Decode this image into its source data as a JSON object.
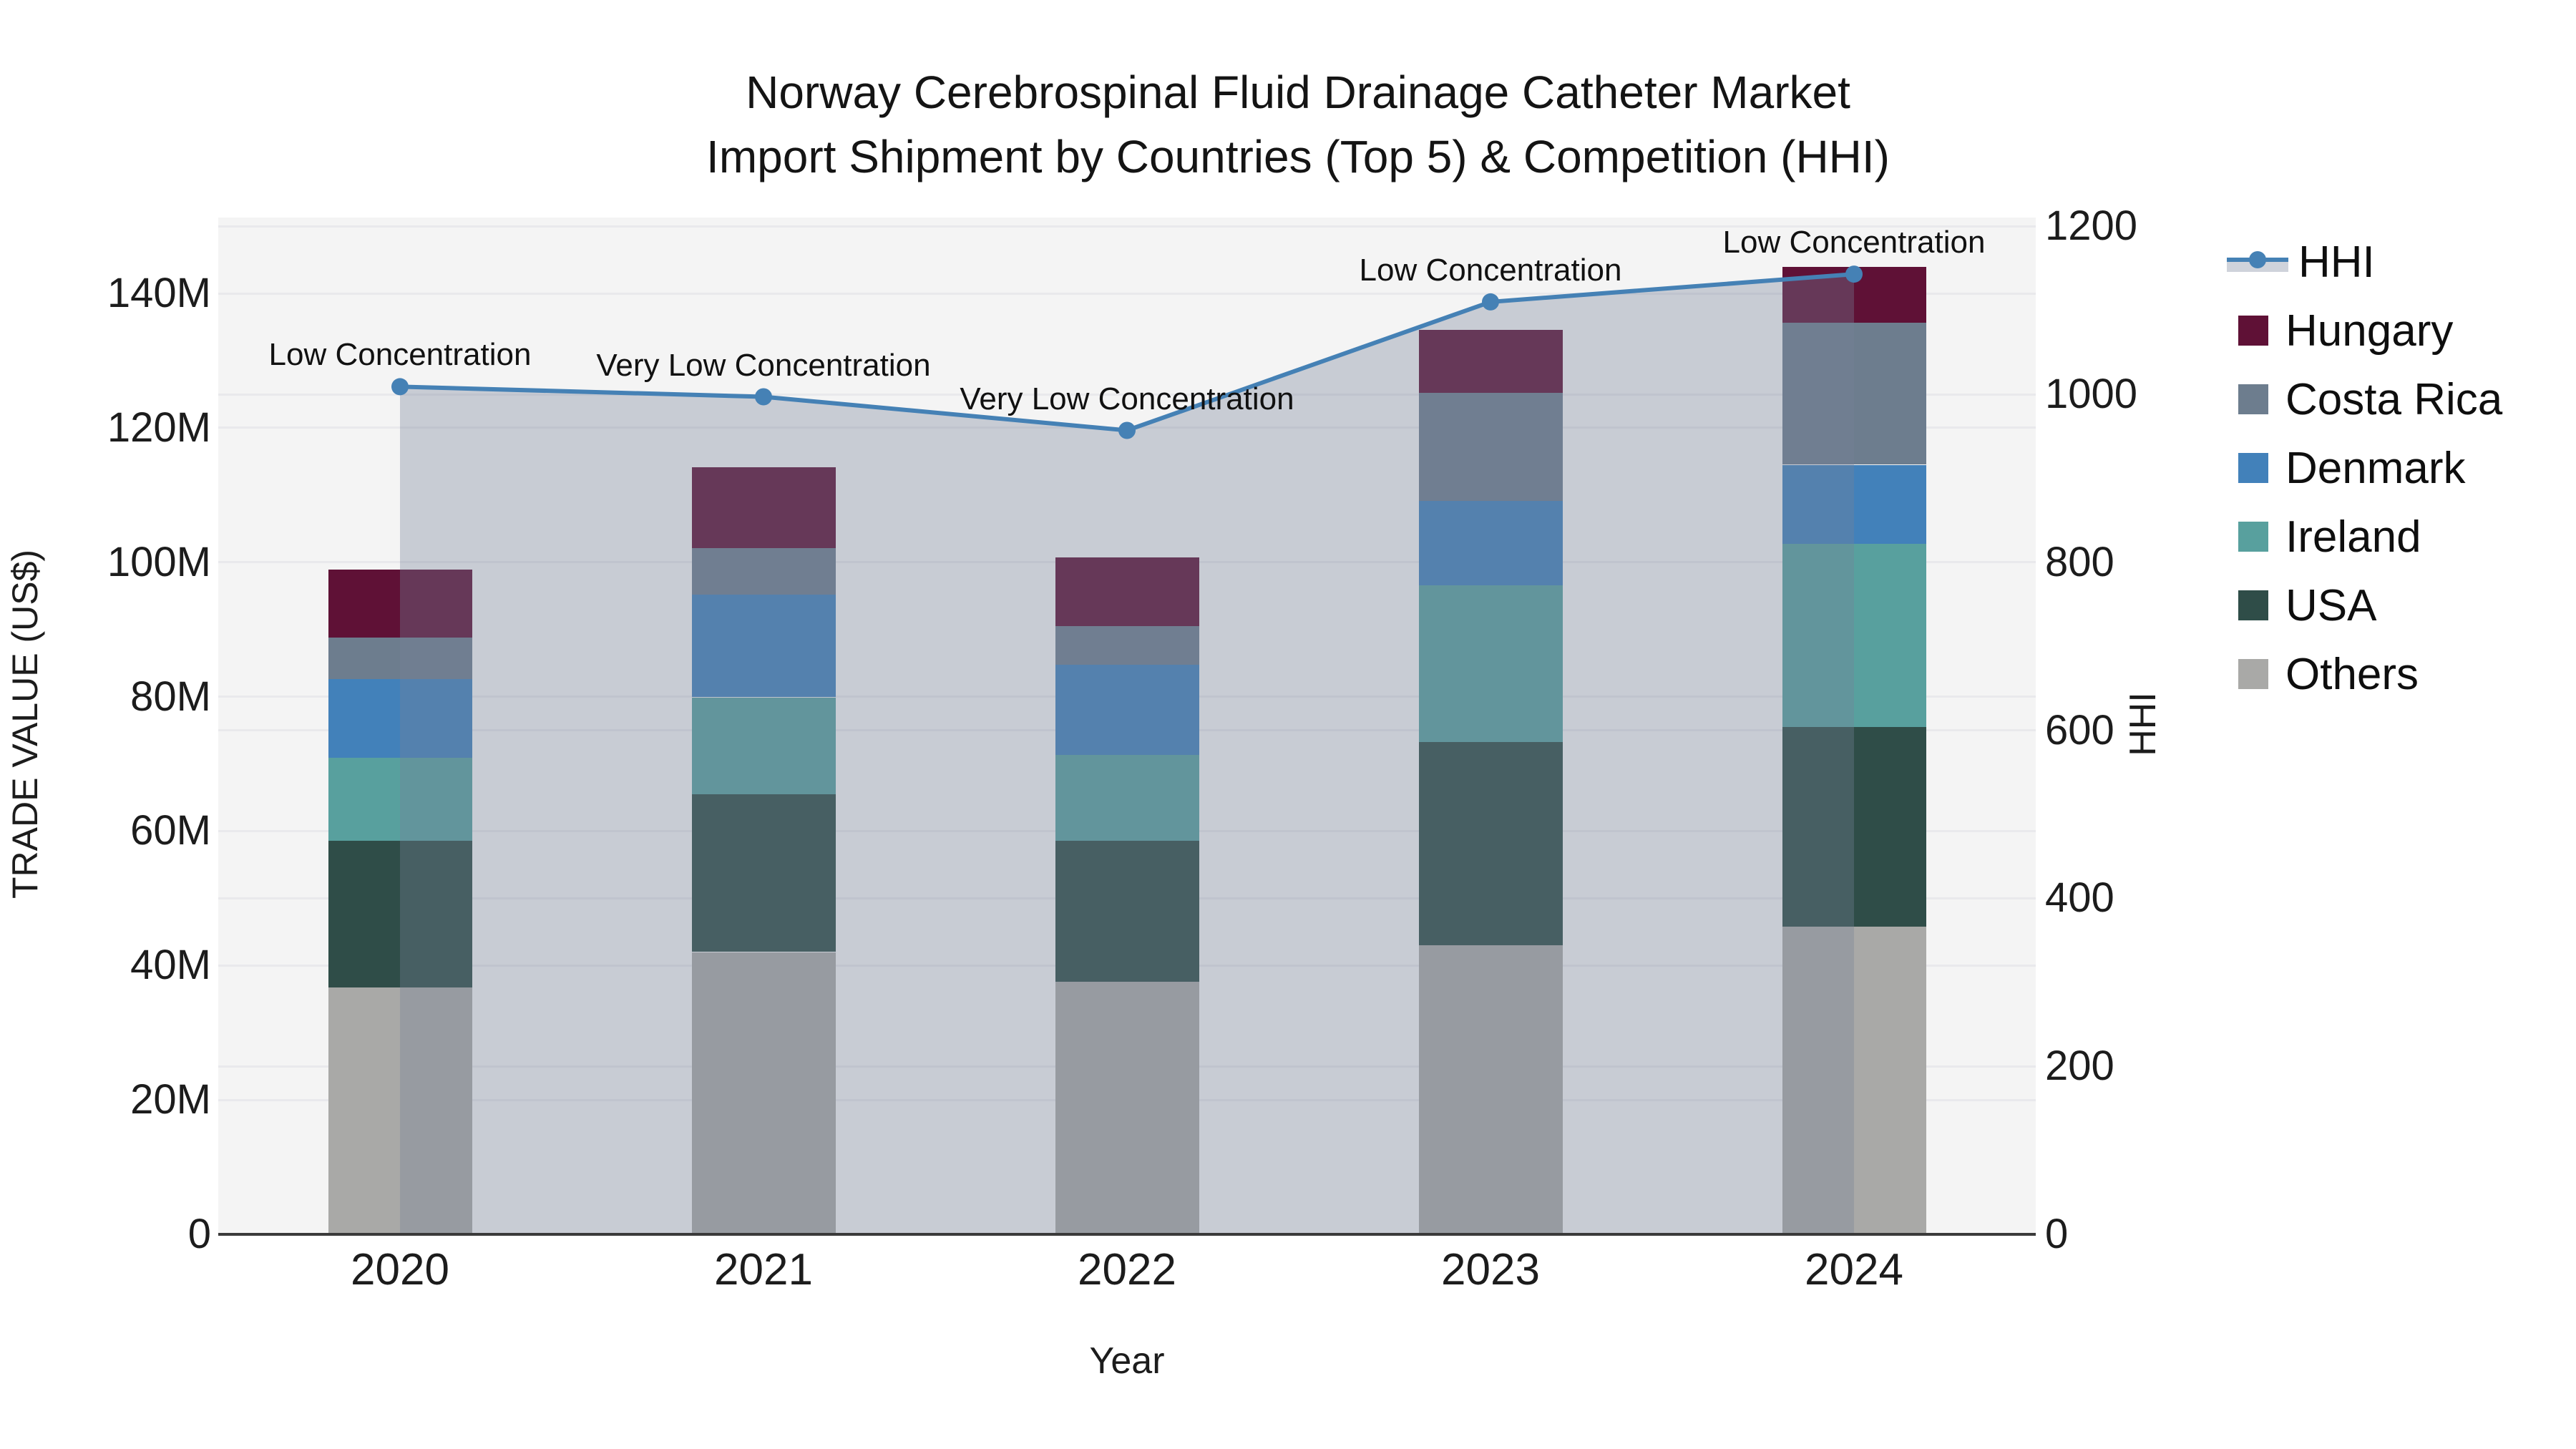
{
  "chart_data": {
    "type": "bar",
    "subtype": "stacked-bars-with-line-area-overlay",
    "title": {
      "lines": [
        "Norway Cerebrospinal Fluid Drainage Catheter Market",
        "Import Shipment by Countries (Top 5) & Competition (HHI)"
      ]
    },
    "categories": [
      "2020",
      "2021",
      "2022",
      "2023",
      "2024"
    ],
    "series": [
      {
        "name": "Hungary",
        "color": "#5f1136",
        "values": [
          10.1,
          12.0,
          10.2,
          9.4,
          8.3
        ]
      },
      {
        "name": "Costa Rica",
        "color": "#6d7d8e",
        "values": [
          6.2,
          6.9,
          5.8,
          16.1,
          21.1
        ]
      },
      {
        "name": "Denmark",
        "color": "#4281ba",
        "values": [
          11.7,
          15.3,
          13.4,
          12.5,
          11.8
        ]
      },
      {
        "name": "Ireland",
        "color": "#58a09e",
        "values": [
          12.3,
          14.4,
          12.7,
          23.4,
          27.2
        ]
      },
      {
        "name": "USA",
        "color": "#2f4d48",
        "values": [
          21.9,
          23.5,
          21.0,
          30.2,
          29.7
        ]
      },
      {
        "name": "Others",
        "color": "#a9a9a7",
        "values": [
          36.7,
          42.0,
          37.6,
          43.0,
          45.8
        ]
      }
    ],
    "stack_order_bottom_to_top": [
      "Others",
      "USA",
      "Ireland",
      "Denmark",
      "Costa Rica",
      "Hungary"
    ],
    "bar_totals_musd": [
      98.9,
      114.1,
      100.7,
      134.6,
      143.9
    ],
    "line_series": {
      "name": "HHI",
      "color": "#4581b5",
      "area_fill": "rgba(118,130,152,0.35)",
      "values": [
        1009,
        997,
        957,
        1110,
        1143
      ]
    },
    "annotations": [
      {
        "category": "2020",
        "text": "Low Concentration"
      },
      {
        "category": "2021",
        "text": "Very Low Concentration"
      },
      {
        "category": "2022",
        "text": "Very Low Concentration"
      },
      {
        "category": "2023",
        "text": "Low Concentration"
      },
      {
        "category": "2024",
        "text": "Low Concentration"
      }
    ],
    "axes": {
      "x": {
        "title": "Year"
      },
      "left": {
        "title": "TRADE VALUE (US$)",
        "tick_values": [
          0,
          20,
          40,
          60,
          80,
          100,
          120,
          140
        ],
        "tick_labels": [
          "0",
          "20M",
          "40M",
          "60M",
          "80M",
          "100M",
          "120M",
          "140M"
        ],
        "range_musd": [
          0,
          151.3
        ],
        "grid": true
      },
      "right": {
        "title": "HHI",
        "tick_values": [
          0,
          200,
          400,
          600,
          800,
          1000,
          1200
        ],
        "tick_labels": [
          "0",
          "200",
          "400",
          "600",
          "800",
          "1000",
          "1200"
        ],
        "range": [
          0,
          1210
        ],
        "grid": true
      }
    },
    "legend": {
      "position": "right",
      "items": [
        {
          "label": "HHI",
          "type": "line",
          "color": "#4581b5"
        },
        {
          "label": "Hungary",
          "type": "swatch",
          "color": "#5f1136"
        },
        {
          "label": "Costa Rica",
          "type": "swatch",
          "color": "#6d7d8e"
        },
        {
          "label": "Denmark",
          "type": "swatch",
          "color": "#4281ba"
        },
        {
          "label": "Ireland",
          "type": "swatch",
          "color": "#58a09e"
        },
        {
          "label": "USA",
          "type": "swatch",
          "color": "#2f4d48"
        },
        {
          "label": "Others",
          "type": "swatch",
          "color": "#a9a9a7"
        }
      ]
    },
    "plot_background": "#f4f4f4",
    "gridline_color": "#e9e9ec",
    "axis_line_color": "#3a3a3a"
  }
}
